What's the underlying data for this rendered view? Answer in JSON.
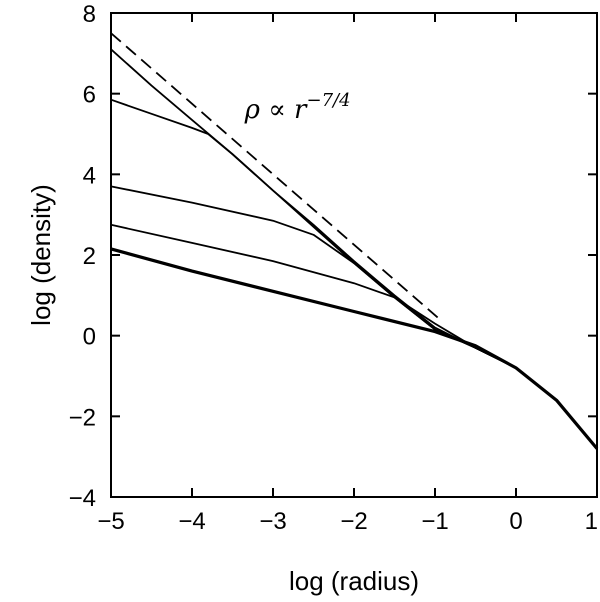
{
  "chart_data": {
    "type": "line",
    "xlabel": "log (radius)",
    "ylabel": "log (density)",
    "xlim": [
      -5,
      1
    ],
    "ylim": [
      -4,
      8
    ],
    "xticks": [
      -5,
      -4,
      -3,
      -2,
      -1,
      0,
      1
    ],
    "yticks": [
      -4,
      -2,
      0,
      2,
      4,
      6,
      8
    ],
    "xtick_labels": [
      "−5",
      "−4",
      "−3",
      "−2",
      "−1",
      "0",
      "1"
    ],
    "ytick_labels": [
      "−4",
      "−2",
      "0",
      "2",
      "4",
      "6",
      "8"
    ],
    "grid": false,
    "annotation": {
      "base": "ρ ∝ r",
      "exponent": "−7/4",
      "x": -3.35,
      "y": 5.4
    },
    "series": [
      {
        "style": "dashed",
        "x": [
          -5.0,
          -0.95
        ],
        "y": [
          7.5,
          0.42
        ]
      },
      {
        "style": "solid",
        "x": [
          -5.0,
          -4.5,
          -4.0,
          -3.5,
          -3.0,
          -2.5,
          -2.0,
          -1.5,
          -1.0,
          -0.5,
          0.0,
          0.5,
          1.0
        ],
        "y": [
          7.1,
          6.2,
          5.35,
          4.5,
          3.6,
          2.75,
          1.85,
          1.0,
          0.2,
          -0.3,
          -0.8,
          -1.6,
          -2.8
        ]
      },
      {
        "style": "solid",
        "x": [
          -5.0,
          -4.5,
          -4.0,
          -3.8,
          -3.5,
          -3.0,
          -2.5,
          -2.0,
          -1.5,
          -1.0,
          -0.5,
          0.0,
          0.5,
          1.0
        ],
        "y": [
          5.85,
          5.5,
          5.15,
          5.0,
          4.5,
          3.6,
          2.7,
          1.8,
          0.95,
          0.15,
          -0.3,
          -0.8,
          -1.6,
          -2.8
        ]
      },
      {
        "style": "solid",
        "x": [
          -5.0,
          -4.0,
          -3.0,
          -2.5,
          -2.0,
          -1.5,
          -1.0,
          -0.5,
          0.0,
          0.5,
          1.0
        ],
        "y": [
          3.7,
          3.3,
          2.85,
          2.5,
          1.8,
          0.95,
          0.15,
          -0.3,
          -0.8,
          -1.6,
          -2.8
        ]
      },
      {
        "style": "solid",
        "x": [
          -5.0,
          -4.0,
          -3.0,
          -2.0,
          -1.5,
          -1.0,
          -0.5,
          0.0,
          0.5,
          1.0
        ],
        "y": [
          2.75,
          2.3,
          1.85,
          1.3,
          0.95,
          0.3,
          -0.3,
          -0.8,
          -1.6,
          -2.8
        ]
      },
      {
        "style": "bold",
        "x": [
          -5.0,
          -4.0,
          -3.0,
          -2.0,
          -1.0,
          -0.5,
          0.0,
          0.5,
          1.0
        ],
        "y": [
          2.15,
          1.6,
          1.1,
          0.6,
          0.1,
          -0.25,
          -0.8,
          -1.6,
          -2.8
        ]
      }
    ]
  }
}
